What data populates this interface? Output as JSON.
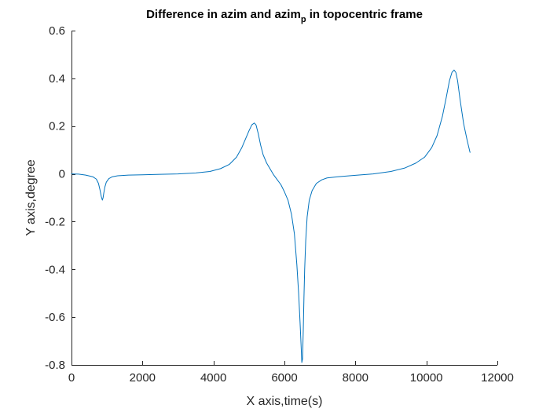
{
  "chart_data": {
    "type": "line",
    "title_main": "Difference in azim and azim",
    "title_sub": "p",
    "title_rest": " in topocentric frame",
    "xlabel": "X axis,time(s)",
    "ylabel": "Y axis,degree",
    "xlim": [
      0,
      12000
    ],
    "ylim": [
      -0.8,
      0.6
    ],
    "x_ticks": [
      0,
      2000,
      4000,
      6000,
      8000,
      10000,
      12000
    ],
    "x_tick_labels": [
      "0",
      "2000",
      "4000",
      "6000",
      "8000",
      "10000",
      "12000"
    ],
    "y_ticks": [
      -0.8,
      -0.6,
      -0.4,
      -0.2,
      0,
      0.2,
      0.4,
      0.6
    ],
    "y_tick_labels": [
      "-0.8",
      "-0.6",
      "-0.4",
      "-0.2",
      "0",
      "0.2",
      "0.4",
      "0.6"
    ],
    "grid": false,
    "line_color": "#0072BD",
    "axis_color": "#262626",
    "series": [
      {
        "x": [
          0,
          200,
          400,
          600,
          700,
          760,
          800,
          840,
          870,
          890,
          910,
          940,
          980,
          1050,
          1150,
          1300,
          1600,
          2000,
          2500,
          3000,
          3500,
          3900,
          4200,
          4450,
          4650,
          4800,
          4900,
          5000,
          5080,
          5150,
          5200,
          5260,
          5330,
          5400,
          5500,
          5600,
          5700,
          5800,
          5900,
          6000,
          6100,
          6200,
          6280,
          6350,
          6400,
          6440,
          6470,
          6490,
          6510,
          6530,
          6550,
          6570,
          6600,
          6640,
          6700,
          6780,
          6900,
          7050,
          7200,
          7500,
          8000,
          8500,
          9000,
          9400,
          9700,
          9950,
          10150,
          10300,
          10450,
          10560,
          10650,
          10720,
          10780,
          10830,
          10880,
          10950,
          11050,
          11150,
          11230
        ],
        "y": [
          0,
          -0.001,
          -0.005,
          -0.012,
          -0.022,
          -0.04,
          -0.065,
          -0.095,
          -0.11,
          -0.1,
          -0.08,
          -0.055,
          -0.035,
          -0.02,
          -0.012,
          -0.008,
          -0.005,
          -0.004,
          -0.002,
          0.0,
          0.004,
          0.01,
          0.022,
          0.04,
          0.07,
          0.11,
          0.145,
          0.18,
          0.205,
          0.213,
          0.205,
          0.17,
          0.12,
          0.08,
          0.045,
          0.02,
          -0.005,
          -0.025,
          -0.045,
          -0.075,
          -0.11,
          -0.17,
          -0.25,
          -0.38,
          -0.5,
          -0.62,
          -0.72,
          -0.79,
          -0.775,
          -0.66,
          -0.52,
          -0.4,
          -0.28,
          -0.18,
          -0.11,
          -0.07,
          -0.04,
          -0.025,
          -0.017,
          -0.012,
          -0.006,
          0.0,
          0.01,
          0.025,
          0.045,
          0.07,
          0.11,
          0.16,
          0.24,
          0.32,
          0.39,
          0.425,
          0.435,
          0.425,
          0.39,
          0.31,
          0.21,
          0.14,
          0.09
        ]
      }
    ]
  }
}
